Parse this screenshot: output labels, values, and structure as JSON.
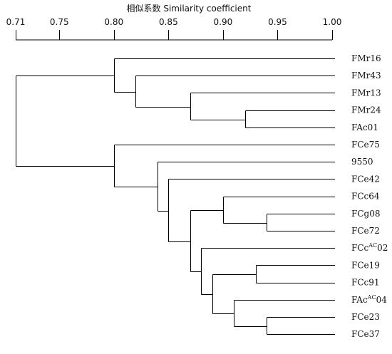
{
  "axis": {
    "title": "相似系数 Similarity coefficient",
    "min": 0.71,
    "max": 1.0,
    "ticks": [
      {
        "value": 0.71,
        "label": "0.71"
      },
      {
        "value": 0.75,
        "label": "0.75"
      },
      {
        "value": 0.8,
        "label": "0.80"
      },
      {
        "value": 0.85,
        "label": "0.85"
      },
      {
        "value": 0.9,
        "label": "0.90"
      },
      {
        "value": 0.95,
        "label": "0.95"
      },
      {
        "value": 1.0,
        "label": "1.00"
      }
    ]
  },
  "leaves": [
    {
      "id": "FMr16",
      "base": "FMr16"
    },
    {
      "id": "FMr43",
      "base": "FMr43"
    },
    {
      "id": "FMr13",
      "base": "FMr13"
    },
    {
      "id": "FMr24",
      "base": "FMr24"
    },
    {
      "id": "FAc01",
      "base": "FAc01"
    },
    {
      "id": "FCe75",
      "base": "FCe75"
    },
    {
      "id": "9550",
      "base": "9550"
    },
    {
      "id": "FCe42",
      "base": "FCe42"
    },
    {
      "id": "FCc64",
      "base": "FCc64"
    },
    {
      "id": "FCg08",
      "base": "FCg08"
    },
    {
      "id": "FCe72",
      "base": "FCe72"
    },
    {
      "id": "FCcAC02",
      "base": "FCc",
      "sup": "AC",
      "tail": "02"
    },
    {
      "id": "FCe19",
      "base": "FCe19"
    },
    {
      "id": "FCc91",
      "base": "FCc91"
    },
    {
      "id": "FAcAC04",
      "base": "FAc",
      "sup": "AC",
      "tail": "04"
    },
    {
      "id": "FCe23",
      "base": "FCe23"
    },
    {
      "id": "FCe37",
      "base": "FCe37"
    }
  ],
  "tree": {
    "sim": 0.71,
    "children": [
      {
        "sim": 0.8,
        "children": [
          {
            "leaf": "FMr16"
          },
          {
            "sim": 0.82,
            "children": [
              {
                "leaf": "FMr43"
              },
              {
                "sim": 0.87,
                "children": [
                  {
                    "leaf": "FMr13"
                  },
                  {
                    "sim": 0.92,
                    "children": [
                      {
                        "leaf": "FMr24"
                      },
                      {
                        "leaf": "FAc01"
                      }
                    ]
                  }
                ]
              }
            ]
          }
        ]
      },
      {
        "sim": 0.8,
        "children": [
          {
            "leaf": "FCe75"
          },
          {
            "sim": 0.84,
            "children": [
              {
                "leaf": "9550"
              },
              {
                "sim": 0.85,
                "children": [
                  {
                    "leaf": "FCe42"
                  },
                  {
                    "sim": 0.87,
                    "children": [
                      {
                        "sim": 0.9,
                        "children": [
                          {
                            "leaf": "FCc64"
                          },
                          {
                            "sim": 0.94,
                            "children": [
                              {
                                "leaf": "FCg08"
                              },
                              {
                                "leaf": "FCe72"
                              }
                            ]
                          }
                        ]
                      },
                      {
                        "sim": 0.88,
                        "children": [
                          {
                            "leaf": "FCcAC02"
                          },
                          {
                            "sim": 0.89,
                            "children": [
                              {
                                "sim": 0.93,
                                "children": [
                                  {
                                    "leaf": "FCe19"
                                  },
                                  {
                                    "leaf": "FCc91"
                                  }
                                ]
                              },
                              {
                                "sim": 0.91,
                                "children": [
                                  {
                                    "leaf": "FAcAC04"
                                  },
                                  {
                                    "sim": 0.94,
                                    "children": [
                                      {
                                        "leaf": "FCe23"
                                      },
                                      {
                                        "leaf": "FCe37"
                                      }
                                    ]
                                  }
                                ]
                              }
                            ]
                          }
                        ]
                      }
                    ]
                  }
                ]
              }
            ]
          }
        ]
      }
    ]
  }
}
